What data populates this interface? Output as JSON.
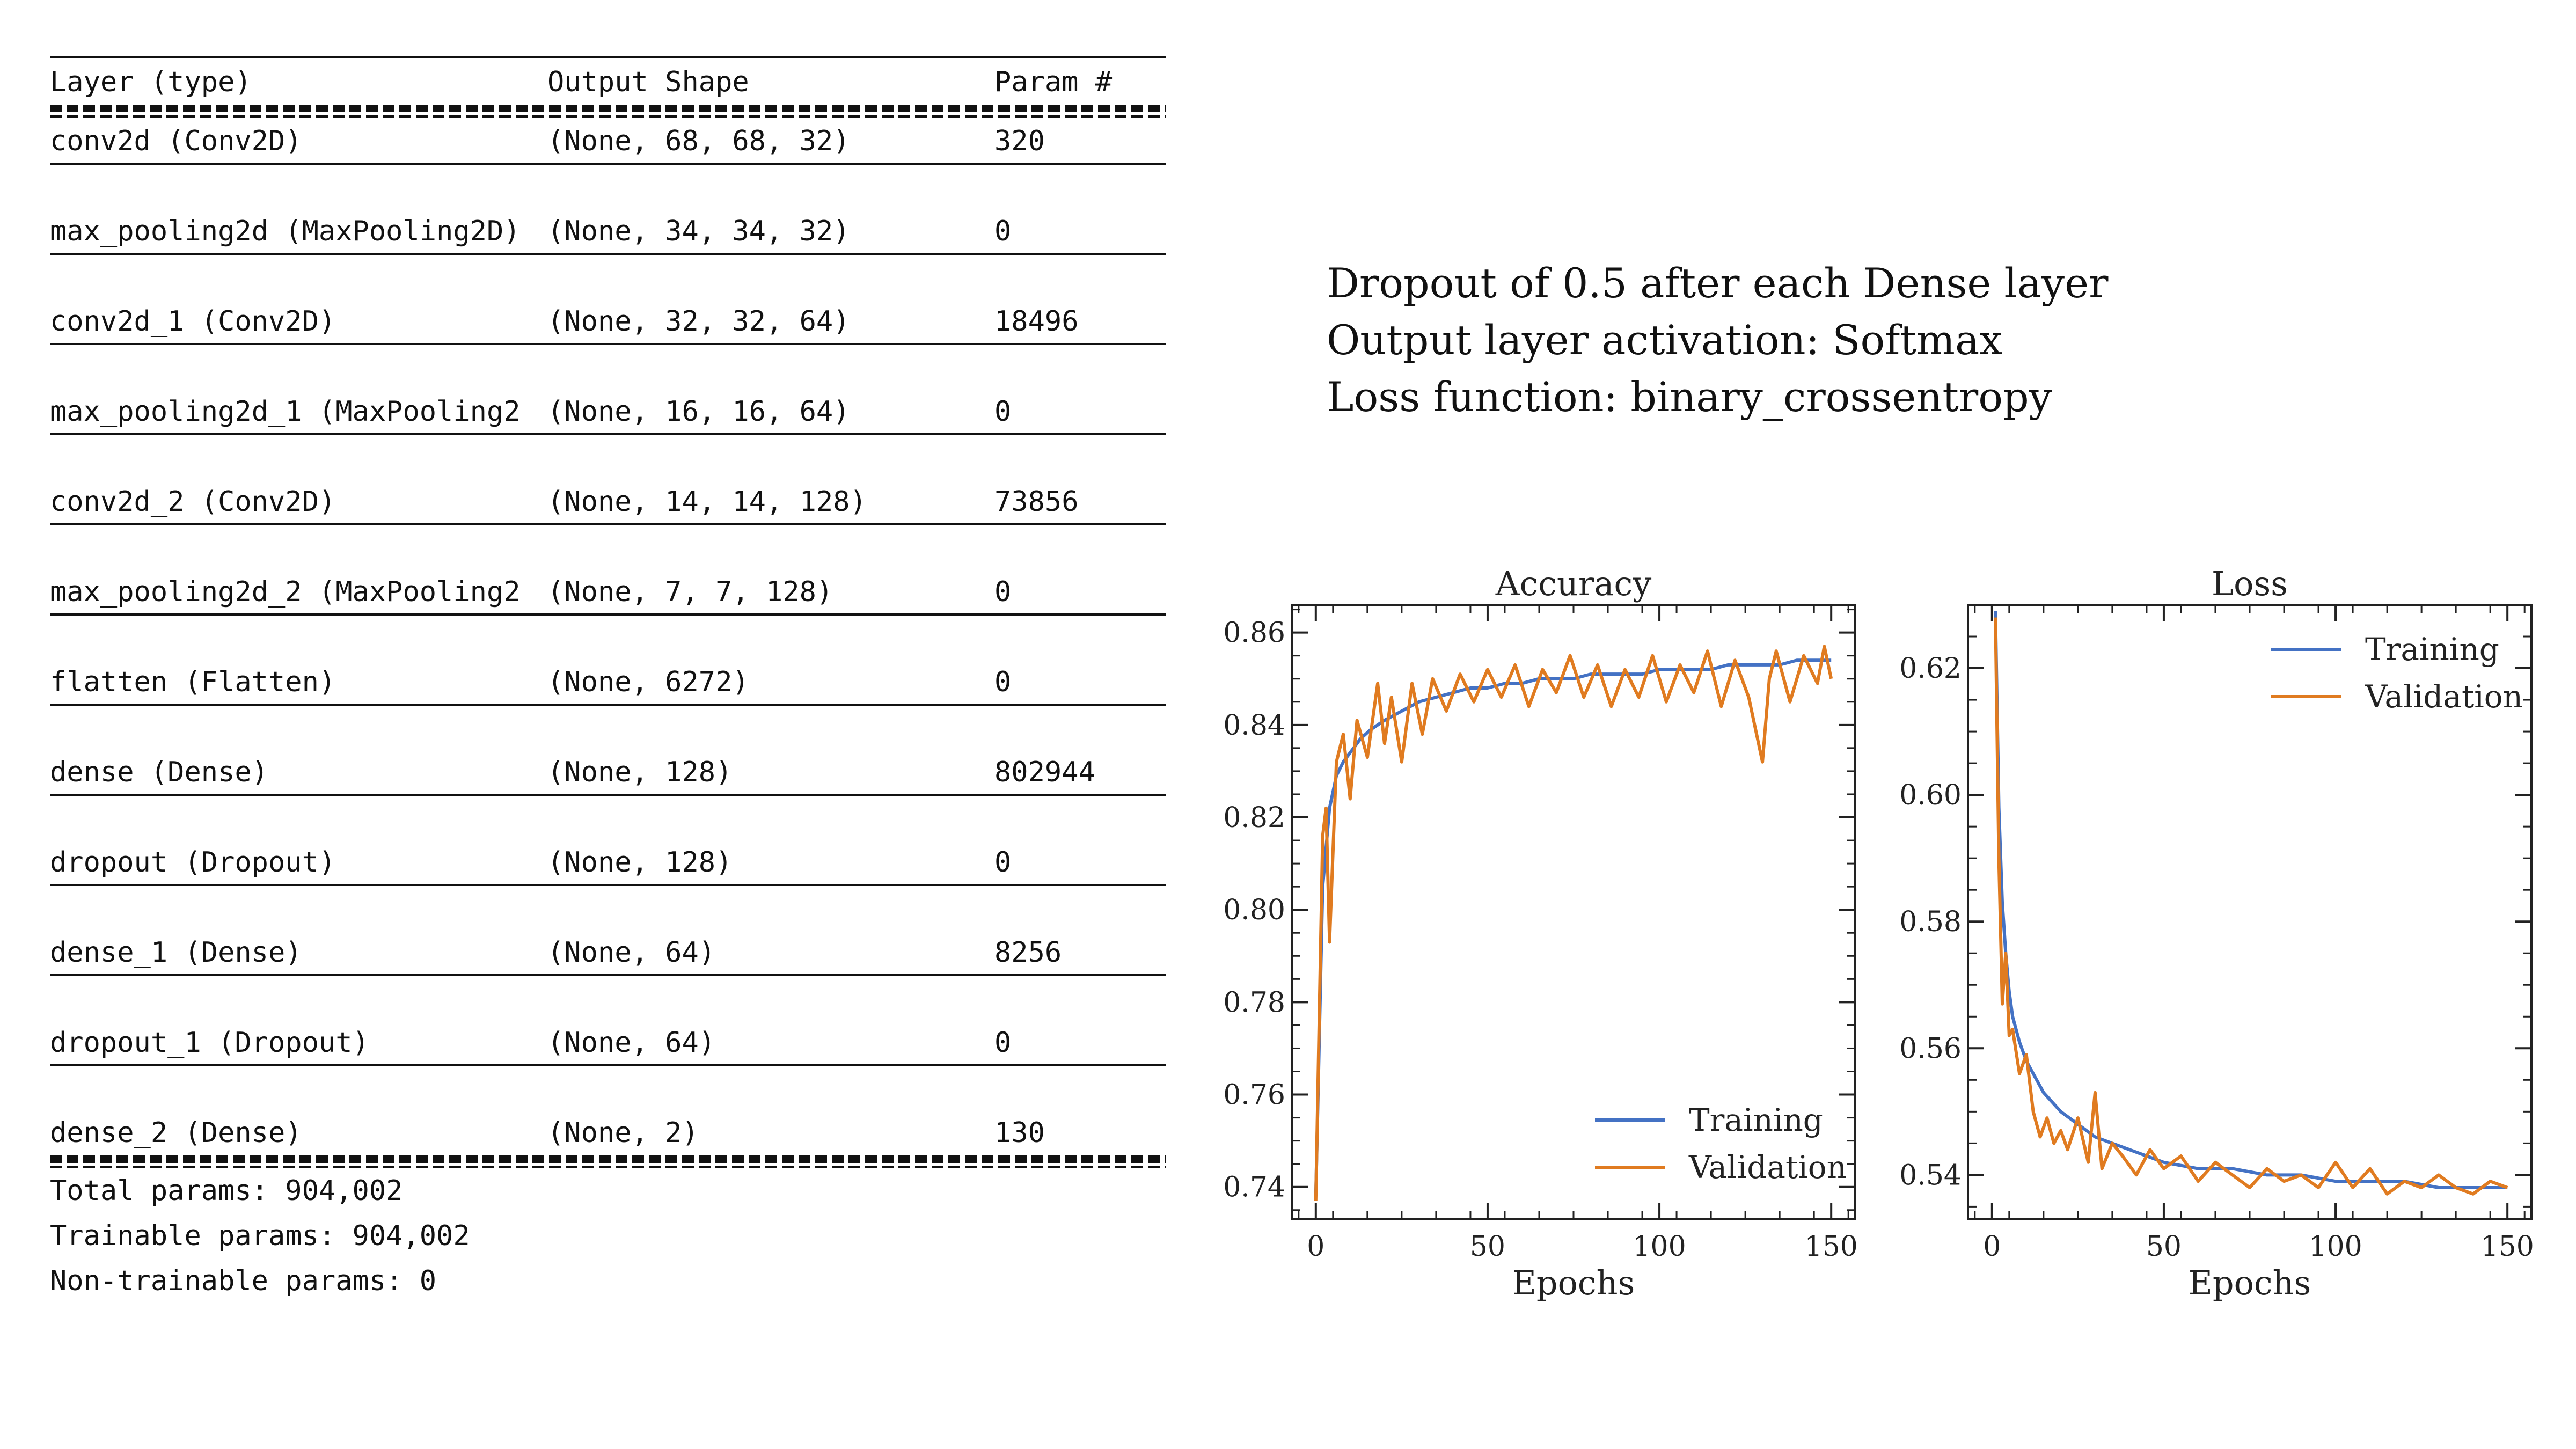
{
  "summary": {
    "headers": [
      "Layer (type)",
      "Output Shape",
      "Param #"
    ],
    "rows": [
      [
        "conv2d (Conv2D)",
        "(None, 68, 68, 32)",
        "320"
      ],
      [
        "max_pooling2d (MaxPooling2D)",
        "(None, 34, 34, 32)",
        "0"
      ],
      [
        "conv2d_1 (Conv2D)",
        "(None, 32, 32, 64)",
        "18496"
      ],
      [
        "max_pooling2d_1 (MaxPooling2",
        "(None, 16, 16, 64)",
        "0"
      ],
      [
        "conv2d_2 (Conv2D)",
        "(None, 14, 14, 128)",
        "73856"
      ],
      [
        "max_pooling2d_2 (MaxPooling2",
        "(None, 7, 7, 128)",
        "0"
      ],
      [
        "flatten (Flatten)",
        "(None, 6272)",
        "0"
      ],
      [
        "dense (Dense)",
        "(None, 128)",
        "802944"
      ],
      [
        "dropout (Dropout)",
        "(None, 128)",
        "0"
      ],
      [
        "dense_1 (Dense)",
        "(None, 64)",
        "8256"
      ],
      [
        "dropout_1 (Dropout)",
        "(None, 64)",
        "0"
      ],
      [
        "dense_2 (Dense)",
        "(None, 2)",
        "130"
      ]
    ],
    "total": "Total params: 904,002",
    "trainable": "Trainable params: 904,002",
    "non_trainable": "Non-trainable params: 0"
  },
  "notes": [
    "Dropout of 0.5 after each Dense layer",
    "Output layer activation: Softmax",
    "Loss function: binary_crossentropy"
  ],
  "colors": {
    "training": "#4472c4",
    "validation": "#e07b20",
    "axes": "#222222"
  },
  "chart_data": [
    {
      "type": "line",
      "title": "Accuracy",
      "xlabel": "Epochs",
      "ylabel": "",
      "xlim": [
        -7,
        157
      ],
      "ylim": [
        0.733,
        0.866
      ],
      "xticks": [
        "0",
        "50",
        "100",
        "150"
      ],
      "xtick_values": [
        0,
        50,
        100,
        150
      ],
      "yticks": [
        "0.74",
        "0.76",
        "0.78",
        "0.80",
        "0.82",
        "0.84",
        "0.86"
      ],
      "ytick_values": [
        0.74,
        0.76,
        0.78,
        0.8,
        0.82,
        0.84,
        0.86
      ],
      "legend": "bottom-right",
      "series": [
        {
          "name": "Training",
          "x": [
            0,
            2,
            4,
            6,
            8,
            10,
            13,
            16,
            20,
            25,
            30,
            35,
            40,
            45,
            50,
            55,
            60,
            65,
            70,
            75,
            80,
            85,
            90,
            95,
            100,
            105,
            110,
            115,
            120,
            125,
            130,
            135,
            140,
            145,
            150
          ],
          "values": [
            0.738,
            0.805,
            0.822,
            0.829,
            0.832,
            0.834,
            0.837,
            0.839,
            0.841,
            0.843,
            0.845,
            0.846,
            0.847,
            0.848,
            0.848,
            0.849,
            0.849,
            0.85,
            0.85,
            0.85,
            0.851,
            0.851,
            0.851,
            0.851,
            0.852,
            0.852,
            0.852,
            0.852,
            0.853,
            0.853,
            0.853,
            0.853,
            0.854,
            0.854,
            0.854
          ]
        },
        {
          "name": "Validation",
          "x": [
            0,
            2,
            3,
            4,
            6,
            8,
            10,
            12,
            15,
            18,
            20,
            22,
            25,
            28,
            31,
            34,
            38,
            42,
            46,
            50,
            54,
            58,
            62,
            66,
            70,
            74,
            78,
            82,
            86,
            90,
            94,
            98,
            102,
            106,
            110,
            114,
            118,
            122,
            126,
            130,
            132,
            134,
            138,
            142,
            146,
            148,
            150
          ],
          "values": [
            0.737,
            0.816,
            0.822,
            0.793,
            0.832,
            0.838,
            0.824,
            0.841,
            0.833,
            0.849,
            0.836,
            0.846,
            0.832,
            0.849,
            0.838,
            0.85,
            0.843,
            0.851,
            0.845,
            0.852,
            0.846,
            0.853,
            0.844,
            0.852,
            0.847,
            0.855,
            0.846,
            0.853,
            0.844,
            0.852,
            0.846,
            0.855,
            0.845,
            0.853,
            0.847,
            0.856,
            0.844,
            0.854,
            0.846,
            0.832,
            0.85,
            0.856,
            0.845,
            0.855,
            0.849,
            0.857,
            0.85
          ]
        }
      ]
    },
    {
      "type": "line",
      "title": "Loss",
      "xlabel": "Epochs",
      "ylabel": "",
      "xlim": [
        -7,
        157
      ],
      "ylim": [
        0.533,
        0.63
      ],
      "xticks": [
        "0",
        "50",
        "100",
        "150"
      ],
      "xtick_values": [
        0,
        50,
        100,
        150
      ],
      "yticks": [
        "0.54",
        "0.56",
        "0.58",
        "0.60",
        "0.62"
      ],
      "ytick_values": [
        0.54,
        0.56,
        0.58,
        0.6,
        0.62
      ],
      "legend": "top-right",
      "series": [
        {
          "name": "Training",
          "x": [
            1,
            2,
            3,
            4,
            5,
            6,
            8,
            10,
            12,
            15,
            20,
            25,
            30,
            35,
            40,
            45,
            50,
            60,
            70,
            80,
            90,
            100,
            110,
            120,
            130,
            140,
            150
          ],
          "values": [
            0.629,
            0.598,
            0.583,
            0.575,
            0.569,
            0.565,
            0.561,
            0.558,
            0.556,
            0.553,
            0.55,
            0.548,
            0.546,
            0.545,
            0.544,
            0.543,
            0.542,
            0.541,
            0.541,
            0.54,
            0.54,
            0.539,
            0.539,
            0.539,
            0.538,
            0.538,
            0.538
          ]
        },
        {
          "name": "Validation",
          "x": [
            1,
            2,
            3,
            4,
            5,
            6,
            8,
            10,
            12,
            14,
            16,
            18,
            20,
            22,
            25,
            28,
            30,
            32,
            35,
            38,
            42,
            46,
            50,
            55,
            60,
            65,
            70,
            75,
            80,
            85,
            90,
            95,
            100,
            105,
            110,
            115,
            120,
            125,
            130,
            135,
            140,
            145,
            150
          ],
          "values": [
            0.628,
            0.59,
            0.567,
            0.575,
            0.562,
            0.563,
            0.556,
            0.559,
            0.55,
            0.546,
            0.549,
            0.545,
            0.547,
            0.544,
            0.549,
            0.542,
            0.553,
            0.541,
            0.545,
            0.543,
            0.54,
            0.544,
            0.541,
            0.543,
            0.539,
            0.542,
            0.54,
            0.538,
            0.541,
            0.539,
            0.54,
            0.538,
            0.542,
            0.538,
            0.541,
            0.537,
            0.539,
            0.538,
            0.54,
            0.538,
            0.537,
            0.539,
            0.538
          ]
        }
      ]
    }
  ]
}
